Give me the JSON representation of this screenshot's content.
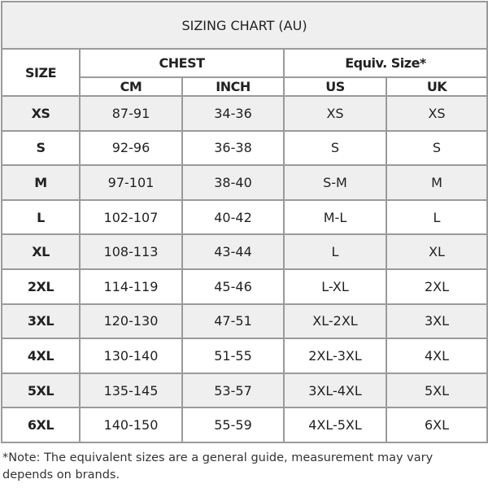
{
  "title": "SIZING CHART (AU)",
  "headers": {
    "size": "SIZE",
    "chest": "CHEST",
    "equiv": "Equiv. Size*",
    "cm": "CM",
    "inch": "INCH",
    "us": "US",
    "uk": "UK"
  },
  "rows": [
    {
      "size": "XS",
      "cm": "87-91",
      "inch": "34-36",
      "us": "XS",
      "uk": "XS"
    },
    {
      "size": "S",
      "cm": "92-96",
      "inch": "36-38",
      "us": "S",
      "uk": "S"
    },
    {
      "size": "M",
      "cm": "97-101",
      "inch": "38-40",
      "us": "S-M",
      "uk": "M"
    },
    {
      "size": "L",
      "cm": "102-107",
      "inch": "40-42",
      "us": "M-L",
      "uk": "L"
    },
    {
      "size": "XL",
      "cm": "108-113",
      "inch": "43-44",
      "us": "L",
      "uk": "XL"
    },
    {
      "size": "2XL",
      "cm": "114-119",
      "inch": "45-46",
      "us": "L-XL",
      "uk": "2XL"
    },
    {
      "size": "3XL",
      "cm": "120-130",
      "inch": "47-51",
      "us": "XL-2XL",
      "uk": "3XL"
    },
    {
      "size": "4XL",
      "cm": "130-140",
      "inch": "51-55",
      "us": "2XL-3XL",
      "uk": "4XL"
    },
    {
      "size": "5XL",
      "cm": "135-145",
      "inch": "53-57",
      "us": "3XL-4XL",
      "uk": "5XL"
    },
    {
      "size": "6XL",
      "cm": "140-150",
      "inch": "55-59",
      "us": "4XL-5XL",
      "uk": "6XL"
    }
  ],
  "note": "*Note: The equivalent sizes are a general guide, measurement may vary depends on brands.",
  "colors": {
    "border": "#9a9a9a",
    "shaded_row": "#efefef"
  }
}
